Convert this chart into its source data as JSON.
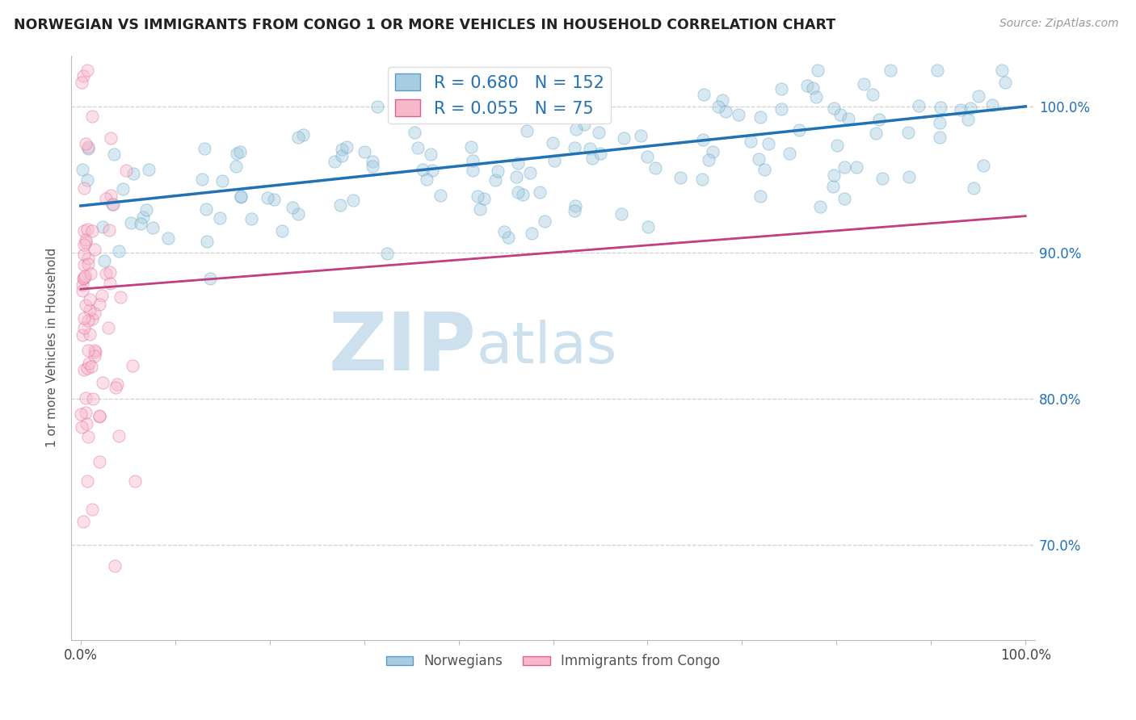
{
  "title": "NORWEGIAN VS IMMIGRANTS FROM CONGO 1 OR MORE VEHICLES IN HOUSEHOLD CORRELATION CHART",
  "source": "Source: ZipAtlas.com",
  "xlabel": "",
  "ylabel": "1 or more Vehicles in Household",
  "legend_norwegians": "Norwegians",
  "legend_congo": "Immigrants from Congo",
  "R_norwegian": 0.68,
  "N_norwegian": 152,
  "R_congo": 0.055,
  "N_congo": 75,
  "blue_color": "#a8cce0",
  "blue_edge_color": "#5a9ec9",
  "blue_line_color": "#2171b5",
  "pink_color": "#f7b8cc",
  "pink_edge_color": "#e06090",
  "pink_line_color": "#c04080",
  "watermark_ZIP": "ZIP",
  "watermark_atlas": "atlas",
  "watermark_color": "#cce0ee",
  "x_min": 0.0,
  "x_max": 1.0,
  "y_min": 0.635,
  "y_max": 1.035,
  "ytick_right_labels": [
    "70.0%",
    "80.0%",
    "90.0%",
    "100.0%"
  ],
  "ytick_right_values": [
    0.7,
    0.8,
    0.9,
    1.0
  ],
  "background_color": "#ffffff",
  "grid_color": "#d0d0d0",
  "title_fontsize": 12.5,
  "label_fontsize": 11,
  "legend_fontsize": 15,
  "scatter_size": 120,
  "scatter_alpha": 0.45
}
